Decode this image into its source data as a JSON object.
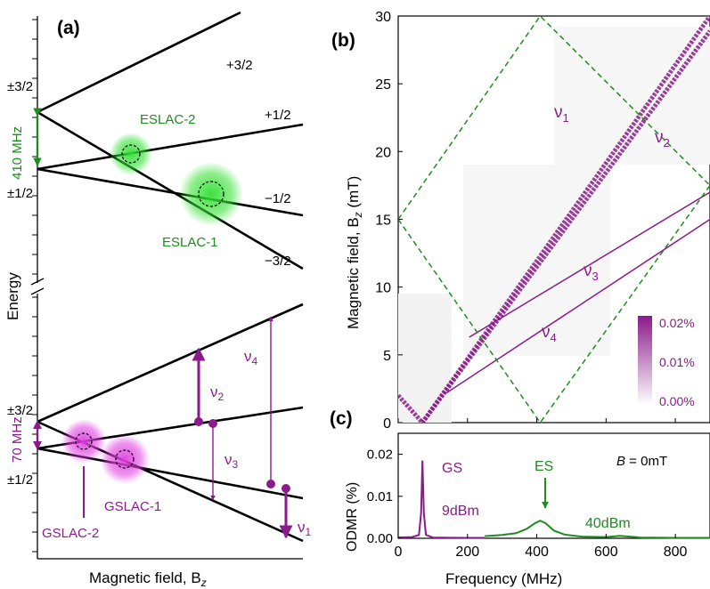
{
  "colors": {
    "ink": "#000000",
    "green": "#1e8c1e",
    "purple": "#8b1a8b",
    "green_glow": "#33e033",
    "purple_glow": "#e040e0"
  },
  "panel_a": {
    "label": "(a)",
    "axis_x": "Magnetic field, B",
    "axis_x_sub": "z",
    "axis_y": "Energy",
    "excited": {
      "state_top": "±3/2",
      "state_bottom": "±1/2",
      "splitting": "410 MHz",
      "levels": [
        "+3/2",
        "+1/2",
        "−1/2",
        "−3/2"
      ],
      "lac": [
        "ESLAC-2",
        "ESLAC-1"
      ]
    },
    "ground": {
      "state_top": "±3/2",
      "state_bottom": "±1/2",
      "splitting": "70 MHz",
      "lac": [
        "GSLAC-1",
        "GSLAC-2"
      ],
      "transitions": [
        "ν",
        "ν",
        "ν",
        "ν"
      ],
      "transition_subs": [
        "2",
        "3",
        "4",
        "1"
      ]
    }
  },
  "panel_b": {
    "label": "(b)",
    "ylabel": "Magnetic field, B",
    "ylabel_sub": "z",
    "ylabel_unit": " (mT)",
    "yticks": [
      "0",
      "5",
      "10",
      "15",
      "20",
      "25",
      "30"
    ],
    "line_labels": [
      "ν",
      "ν",
      "ν",
      "ν"
    ],
    "line_subs": [
      "1",
      "2",
      "3",
      "4"
    ],
    "colorbar_ticks": [
      "0.02%",
      "0.01%",
      "0.00%"
    ]
  },
  "panel_c": {
    "label": "(c)",
    "ylabel": "ODMR (%)",
    "xlabel": "Frequency (MHz)",
    "xticks": [
      "0",
      "200",
      "400",
      "600",
      "800"
    ],
    "yticks": [
      "0.00",
      "0.01",
      "0.02"
    ],
    "field_note_var": "B",
    "field_note_val": " = 0mT",
    "gs_label": "GS",
    "gs_power": "9dBm",
    "es_label": "ES",
    "es_power": "40dBm"
  },
  "chart_data": [
    {
      "type": "heatmap",
      "xlabel": "Frequency (MHz)",
      "ylabel": "Magnetic field, Bz (mT)",
      "xlim": [
        0,
        900
      ],
      "ylim": [
        0,
        30
      ],
      "series": [
        {
          "name": "ν1",
          "x": [
            0,
            70,
            900
          ],
          "y": [
            2,
            0,
            28.9
          ]
        },
        {
          "name": "ν2",
          "x": [
            70,
            900
          ],
          "y": [
            0,
            30
          ]
        },
        {
          "name": "ν3",
          "x": [
            205,
            900
          ],
          "y": [
            6.3,
            17
          ]
        },
        {
          "name": "ν4",
          "x": [
            140,
            900
          ],
          "y": [
            2.2,
            15
          ]
        },
        {
          "name": "ESLAC boundary",
          "x": [
            0,
            410,
            900
          ],
          "y": [
            15,
            0,
            17.5
          ]
        },
        {
          "name": "ESLAC boundary",
          "x": [
            0,
            410,
            900
          ],
          "y": [
            15,
            30,
            17.5
          ]
        }
      ],
      "colorbar": {
        "min": "0.00%",
        "max": "0.02%"
      }
    },
    {
      "type": "line",
      "xlabel": "Frequency (MHz)",
      "ylabel": "ODMR (%)",
      "xlim": [
        0,
        900
      ],
      "ylim": [
        0,
        0.025
      ],
      "series": [
        {
          "name": "GS",
          "x": [
            0,
            40,
            60,
            66,
            70,
            74,
            80,
            100,
            200,
            250
          ],
          "y": [
            0.0002,
            0.0003,
            0.0008,
            0.006,
            0.0185,
            0.006,
            0.0008,
            0.0002,
            0.0001,
            0.0001
          ]
        },
        {
          "name": "ES",
          "x": [
            250,
            300,
            340,
            370,
            395,
            410,
            425,
            450,
            480,
            530,
            600,
            640,
            700,
            800,
            900
          ],
          "y": [
            0.0005,
            0.0008,
            0.0012,
            0.0022,
            0.0036,
            0.0042,
            0.0036,
            0.0018,
            0.0009,
            0.0004,
            0.0003,
            0.0006,
            0.0002,
            0.0001,
            0.0001
          ]
        }
      ]
    }
  ]
}
